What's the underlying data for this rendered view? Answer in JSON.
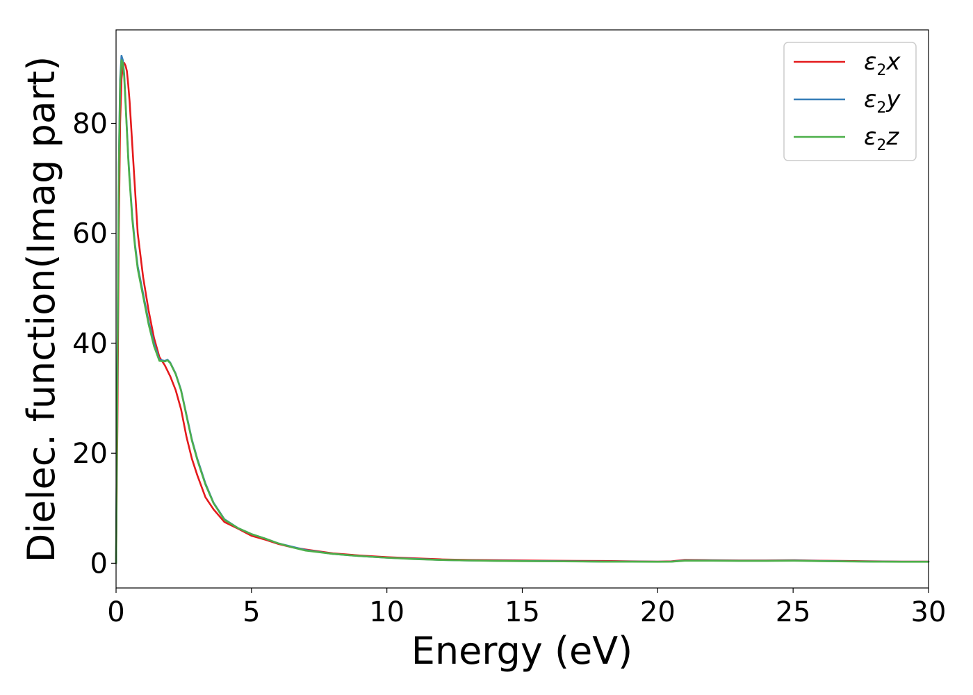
{
  "chart_data": {
    "type": "line",
    "xlabel": "Energy (eV)",
    "ylabel": "Dielec. function(Imag part)",
    "xlim": [
      0,
      30
    ],
    "ylim": [
      -4.5,
      97
    ],
    "xticks": [
      0,
      5,
      10,
      15,
      20,
      25,
      30
    ],
    "yticks": [
      0,
      20,
      40,
      60,
      80
    ],
    "grid": false,
    "legend_placement": "top-right",
    "series": [
      {
        "name": "ε2x",
        "legend": {
          "symbol": "ε",
          "sub": "2",
          "suffix": "x"
        },
        "color": "#e41a1c",
        "x": [
          0,
          0.05,
          0.1,
          0.15,
          0.2,
          0.25,
          0.3,
          0.35,
          0.4,
          0.45,
          0.5,
          0.6,
          0.7,
          0.8,
          1.0,
          1.2,
          1.4,
          1.6,
          1.8,
          2.0,
          2.2,
          2.4,
          2.6,
          2.8,
          3.0,
          3.3,
          3.6,
          4.0,
          4.5,
          5.0,
          5.5,
          6.0,
          6.5,
          7.0,
          8.0,
          9.0,
          10.0,
          11.0,
          12.0,
          13.0,
          14.0,
          15.0,
          16.0,
          17.0,
          18.0,
          19.0,
          20.0,
          20.5,
          21.0,
          22.0,
          23.0,
          24.0,
          25.0,
          25.5,
          26.0,
          27.0,
          28.0,
          29.0,
          30.0
        ],
        "y": [
          0,
          25,
          60,
          80,
          88,
          90.5,
          91,
          90.5,
          89.5,
          87,
          84,
          76,
          68,
          60,
          52,
          46,
          41,
          37.5,
          36,
          34,
          31.5,
          28,
          23,
          19,
          16,
          12,
          9.8,
          7.5,
          6.3,
          5.0,
          4.3,
          3.5,
          2.9,
          2.5,
          1.8,
          1.4,
          1.1,
          0.9,
          0.7,
          0.6,
          0.55,
          0.5,
          0.45,
          0.42,
          0.4,
          0.35,
          0.3,
          0.35,
          0.6,
          0.55,
          0.5,
          0.5,
          0.55,
          0.5,
          0.45,
          0.4,
          0.35,
          0.3,
          0.3
        ]
      },
      {
        "name": "ε2y",
        "legend": {
          "symbol": "ε",
          "sub": "2",
          "suffix": "y"
        },
        "color": "#377eb8",
        "x": [
          0,
          0.05,
          0.1,
          0.15,
          0.2,
          0.25,
          0.3,
          0.35,
          0.4,
          0.45,
          0.5,
          0.6,
          0.7,
          0.8,
          1.0,
          1.2,
          1.4,
          1.6,
          1.8,
          1.9,
          2.0,
          2.2,
          2.4,
          2.6,
          2.8,
          3.0,
          3.3,
          3.6,
          4.0,
          4.5,
          5.0,
          5.5,
          6.0,
          6.5,
          7.0,
          8.0,
          9.0,
          10.0,
          11.0,
          12.0,
          13.0,
          14.0,
          15.0,
          16.0,
          17.0,
          18.0,
          19.0,
          20.0,
          20.5,
          21.0,
          22.0,
          23.0,
          24.0,
          25.0,
          25.5,
          26.0,
          27.0,
          28.0,
          29.0,
          30.0
        ],
        "y": [
          0,
          35,
          72,
          88,
          92.3,
          91.5,
          89,
          84,
          79,
          74,
          70,
          63,
          58,
          54,
          49,
          44,
          40,
          37,
          36.8,
          37,
          36.5,
          34.5,
          31.5,
          27,
          22.5,
          19,
          14.5,
          11,
          8.0,
          6.4,
          5.3,
          4.5,
          3.6,
          3.0,
          2.4,
          1.7,
          1.3,
          1.0,
          0.8,
          0.6,
          0.5,
          0.45,
          0.4,
          0.38,
          0.35,
          0.3,
          0.3,
          0.28,
          0.3,
          0.5,
          0.5,
          0.45,
          0.45,
          0.5,
          0.45,
          0.4,
          0.35,
          0.3,
          0.28,
          0.28
        ]
      },
      {
        "name": "ε2z",
        "legend": {
          "symbol": "ε",
          "sub": "2",
          "suffix": "z"
        },
        "color": "#4daf4a",
        "x": [
          0,
          0.05,
          0.1,
          0.15,
          0.2,
          0.25,
          0.3,
          0.35,
          0.4,
          0.45,
          0.5,
          0.6,
          0.7,
          0.8,
          1.0,
          1.2,
          1.4,
          1.6,
          1.8,
          1.9,
          2.0,
          2.2,
          2.4,
          2.6,
          2.8,
          3.0,
          3.3,
          3.6,
          4.0,
          4.5,
          5.0,
          5.5,
          6.0,
          6.5,
          7.0,
          8.0,
          9.0,
          10.0,
          11.0,
          12.0,
          13.0,
          14.0,
          15.0,
          16.0,
          17.0,
          18.0,
          19.0,
          20.0,
          20.5,
          21.0,
          22.0,
          23.0,
          24.0,
          25.0,
          25.5,
          26.0,
          27.0,
          28.0,
          29.0,
          30.0
        ],
        "y": [
          0,
          34,
          71,
          87,
          91.5,
          91,
          88.5,
          83.5,
          78.5,
          73.5,
          69.5,
          62.5,
          57.5,
          53.5,
          48.5,
          43.5,
          39.5,
          36.8,
          36.7,
          36.9,
          36.4,
          34.4,
          31.4,
          26.8,
          22.3,
          18.8,
          14.3,
          10.9,
          7.9,
          6.4,
          5.3,
          4.5,
          3.6,
          2.9,
          2.3,
          1.7,
          1.3,
          1.0,
          0.75,
          0.6,
          0.5,
          0.42,
          0.38,
          0.35,
          0.32,
          0.28,
          0.28,
          0.26,
          0.28,
          0.45,
          0.45,
          0.42,
          0.42,
          0.45,
          0.42,
          0.38,
          0.33,
          0.28,
          0.26,
          0.26
        ]
      }
    ]
  }
}
